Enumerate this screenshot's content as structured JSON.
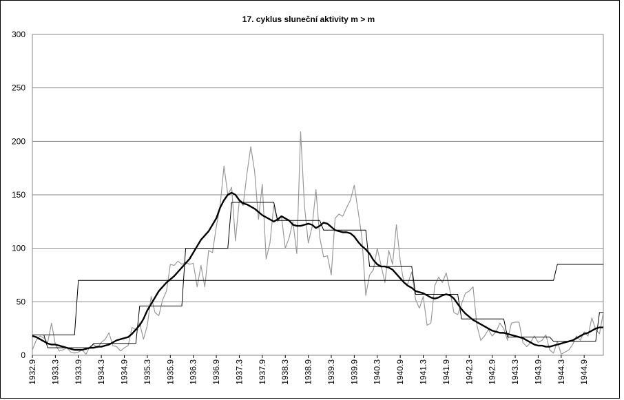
{
  "chart_data": {
    "type": "line",
    "title": "17. cyklus sluneční aktivity m > m",
    "categories": [
      "1932.9",
      null,
      null,
      null,
      null,
      null,
      "1933.3",
      null,
      null,
      null,
      null,
      null,
      "1933.9",
      null,
      null,
      null,
      null,
      null,
      "1934.3",
      null,
      null,
      null,
      null,
      null,
      "1934.9",
      null,
      null,
      null,
      null,
      null,
      "1935.3",
      null,
      null,
      null,
      null,
      null,
      "1935.9",
      null,
      null,
      null,
      null,
      null,
      "1936.3",
      null,
      null,
      null,
      null,
      null,
      "1936.9",
      null,
      null,
      null,
      null,
      null,
      "1937.3",
      null,
      null,
      null,
      null,
      null,
      "1937.9",
      null,
      null,
      null,
      null,
      null,
      "1938.3",
      null,
      null,
      null,
      null,
      null,
      "1938.9",
      null,
      null,
      null,
      null,
      null,
      "1939.3",
      null,
      null,
      null,
      null,
      null,
      "1939.9",
      null,
      null,
      null,
      null,
      null,
      "1940.3",
      null,
      null,
      null,
      null,
      null,
      "1940.9",
      null,
      null,
      null,
      null,
      null,
      "1941.3",
      null,
      null,
      null,
      null,
      null,
      "1941.9",
      null,
      null,
      null,
      null,
      null,
      "1942.3",
      null,
      null,
      null,
      null,
      null,
      "1942.9",
      null,
      null,
      null,
      null,
      null,
      "1943.3",
      null,
      null,
      null,
      null,
      null,
      "1943.9",
      null,
      null,
      null,
      null,
      null,
      "1944.3",
      null,
      null,
      null,
      null,
      null,
      "1944.9",
      null,
      null,
      null,
      null,
      null
    ],
    "series": [
      {
        "color": "#999999",
        "width": 1.2,
        "values": [
          5,
          14,
          18,
          16,
          12,
          30,
          10,
          4,
          5,
          7,
          3,
          2,
          3,
          5,
          1,
          8,
          10,
          7,
          12,
          15,
          21,
          9,
          8,
          4,
          7,
          9,
          26,
          24,
          30,
          15,
          28,
          55,
          40,
          37,
          52,
          60,
          85,
          84,
          88,
          85,
          87,
          85,
          86,
          64,
          84,
          64,
          98,
          96,
          120,
          140,
          177,
          150,
          157,
          107,
          145,
          140,
          170,
          195,
          172,
          127,
          160,
          90,
          105,
          140,
          125,
          130,
          100,
          110,
          125,
          95,
          209,
          140,
          105,
          120,
          155,
          110,
          92,
          93,
          75,
          128,
          132,
          130,
          138,
          145,
          159,
          135,
          110,
          56,
          75,
          80,
          100,
          84,
          68,
          98,
          85,
          122,
          88,
          67,
          67,
          78,
          52,
          44,
          55,
          28,
          30,
          65,
          73,
          68,
          77,
          60,
          40,
          38,
          48,
          58,
          60,
          64,
          28,
          14,
          18,
          24,
          18,
          22,
          30,
          25,
          14,
          30,
          31,
          31,
          12,
          8,
          12,
          18,
          12,
          14,
          19,
          5,
          2,
          13,
          1,
          3,
          5,
          10,
          18,
          14,
          22,
          18,
          35,
          24,
          20,
          40
        ]
      },
      {
        "color": "#000000",
        "width": 1,
        "values": [
          19,
          19,
          19,
          19,
          7,
          7,
          7,
          7,
          7,
          7,
          7,
          7,
          7,
          7,
          7,
          7,
          11,
          11,
          11,
          11,
          11,
          11,
          11,
          11,
          11,
          11,
          11,
          11,
          46,
          46,
          46,
          46,
          46,
          46,
          46,
          46,
          46,
          46,
          46,
          46,
          100,
          100,
          100,
          100,
          100,
          100,
          100,
          100,
          100,
          100,
          100,
          100,
          143,
          143,
          143,
          143,
          143,
          143,
          143,
          143,
          143,
          143,
          143,
          143,
          126,
          126,
          126,
          126,
          126,
          126,
          126,
          126,
          126,
          126,
          126,
          126,
          117,
          117,
          117,
          117,
          117,
          117,
          117,
          117,
          117,
          117,
          117,
          117,
          83,
          83,
          83,
          83,
          83,
          83,
          83,
          83,
          83,
          83,
          83,
          83,
          57,
          57,
          57,
          57,
          57,
          57,
          57,
          57,
          57,
          57,
          57,
          57,
          34,
          34,
          34,
          34,
          34,
          34,
          34,
          34,
          34,
          34,
          34,
          34,
          17,
          17,
          17,
          17,
          17,
          17,
          17,
          17,
          17,
          17,
          17,
          17,
          13,
          13,
          13,
          13,
          13,
          13,
          13,
          13,
          13,
          13,
          13,
          13,
          40,
          40
        ]
      },
      {
        "color": "#000000",
        "width": 1,
        "values": [
          19,
          19,
          19,
          19,
          19,
          19,
          19,
          19,
          19,
          19,
          19,
          19,
          70,
          70,
          70,
          70,
          70,
          70,
          70,
          70,
          70,
          70,
          70,
          70,
          70,
          70,
          70,
          70,
          70,
          70,
          70,
          70,
          70,
          70,
          70,
          70,
          70,
          70,
          70,
          70,
          70,
          70,
          70,
          70,
          70,
          70,
          70,
          70,
          70,
          70,
          70,
          70,
          70,
          70,
          70,
          70,
          70,
          70,
          70,
          70,
          70,
          70,
          70,
          70,
          70,
          70,
          70,
          70,
          70,
          70,
          70,
          70,
          70,
          70,
          70,
          70,
          70,
          70,
          70,
          70,
          70,
          70,
          70,
          70,
          70,
          70,
          70,
          70,
          70,
          70,
          70,
          70,
          70,
          70,
          70,
          70,
          70,
          70,
          70,
          70,
          70,
          70,
          70,
          70,
          70,
          70,
          70,
          70,
          70,
          70,
          70,
          70,
          70,
          70,
          70,
          70,
          70,
          70,
          70,
          70,
          70,
          70,
          70,
          70,
          70,
          70,
          70,
          70,
          70,
          70,
          70,
          70,
          70,
          70,
          70,
          70,
          70,
          85,
          85,
          85,
          85,
          85,
          85,
          85,
          85,
          85,
          85,
          85,
          85,
          85
        ]
      },
      {
        "color": "#000000",
        "width": 2.4,
        "values": [
          18,
          17,
          15,
          13,
          11,
          10,
          10,
          9,
          8,
          7,
          6,
          5,
          5,
          5,
          6,
          7,
          7,
          8,
          8,
          9,
          10,
          12,
          14,
          15,
          16,
          17,
          20,
          24,
          28,
          34,
          42,
          48,
          54,
          60,
          64,
          68,
          71,
          74,
          78,
          82,
          86,
          90,
          96,
          102,
          108,
          112,
          116,
          122,
          128,
          138,
          145,
          150,
          152,
          150,
          145,
          142,
          141,
          139,
          137,
          134,
          131,
          129,
          127,
          125,
          127,
          130,
          128,
          126,
          122,
          121,
          121,
          122,
          123,
          122,
          119,
          121,
          124,
          123,
          120,
          117,
          116,
          115,
          115,
          114,
          111,
          106,
          102,
          99,
          95,
          89,
          85,
          83,
          83,
          82,
          80,
          76,
          72,
          68,
          65,
          63,
          60,
          59,
          58,
          56,
          54,
          53,
          54,
          56,
          57,
          56,
          53,
          48,
          43,
          39,
          36,
          33,
          31,
          29,
          27,
          25,
          23,
          22,
          21,
          21,
          20,
          19,
          18,
          17,
          16,
          14,
          12,
          10,
          9,
          9,
          8,
          8,
          9,
          10,
          11,
          12,
          13,
          14,
          16,
          18,
          20,
          21,
          23,
          25,
          26,
          26
        ]
      }
    ],
    "ylim": [
      0,
      300
    ],
    "yticks": [
      0,
      50,
      100,
      150,
      200,
      250,
      300
    ],
    "grid": true
  }
}
